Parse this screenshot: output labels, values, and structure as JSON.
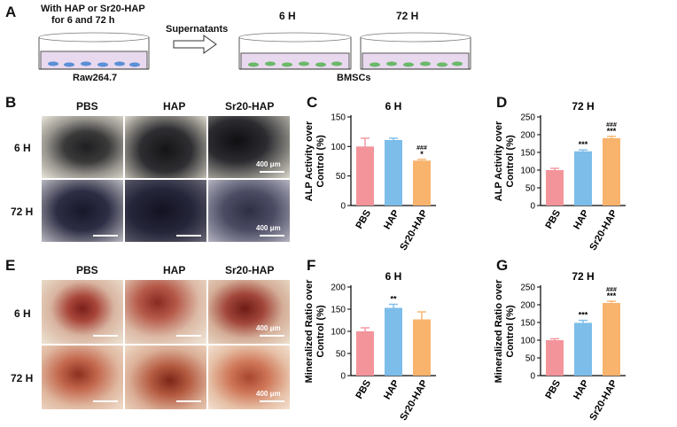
{
  "panel_letters": [
    "A",
    "B",
    "C",
    "D",
    "E",
    "F",
    "G"
  ],
  "panelA": {
    "treat_line1": "With HAP or Sr20-HAP",
    "treat_line2": "for 6 and 72 h",
    "arrow_label": "Supernatants",
    "dish_left_label": "Raw264.7",
    "time1": "6 H",
    "time2": "72 H",
    "dish_right_label": "BMSCs"
  },
  "panelB": {
    "columns": [
      "PBS",
      "HAP",
      "Sr20-HAP"
    ],
    "rows": [
      "6 H",
      "72 H"
    ],
    "scale": "400 μm"
  },
  "panelE": {
    "columns": [
      "PBS",
      "HAP",
      "Sr20-HAP"
    ],
    "rows": [
      "6 H",
      "72 H"
    ],
    "scale": "400 μm"
  },
  "colors": {
    "PBS": "#f3949b",
    "HAP": "#7cbdea",
    "Sr20-HAP": "#f8b36c"
  },
  "chart_data": [
    {
      "panel": "C",
      "type": "bar",
      "title": "6 H",
      "ylabel": "ALP Activity over Control (%)",
      "categories": [
        "PBS",
        "HAP",
        "Sr20-HAP"
      ],
      "values": [
        100,
        111,
        76
      ],
      "errors": [
        14,
        3,
        2
      ],
      "annotations": [
        "",
        "",
        "###|*"
      ],
      "ylim": [
        0,
        150
      ],
      "yticks": [
        0,
        50,
        100,
        150
      ]
    },
    {
      "panel": "D",
      "type": "bar",
      "title": "72 H",
      "ylabel": "ALP Activity over Control (%)",
      "categories": [
        "PBS",
        "HAP",
        "Sr20-HAP"
      ],
      "values": [
        100,
        153,
        190
      ],
      "errors": [
        5,
        4,
        5
      ],
      "annotations": [
        "",
        "***",
        "###|***"
      ],
      "ylim": [
        0,
        250
      ],
      "yticks": [
        0,
        50,
        100,
        150,
        200,
        250
      ]
    },
    {
      "panel": "F",
      "type": "bar",
      "title": "6 H",
      "ylabel": "Mineralized Ratio over Control (%)",
      "categories": [
        "PBS",
        "HAP",
        "Sr20-HAP"
      ],
      "values": [
        100,
        153,
        127
      ],
      "errors": [
        8,
        8,
        17
      ],
      "annotations": [
        "",
        "**",
        ""
      ],
      "ylim": [
        0,
        200
      ],
      "yticks": [
        0,
        50,
        100,
        150,
        200
      ]
    },
    {
      "panel": "G",
      "type": "bar",
      "title": "72 H",
      "ylabel": "Mineralized Ratio over Control (%)",
      "categories": [
        "PBS",
        "HAP",
        "Sr20-HAP"
      ],
      "values": [
        100,
        149,
        205
      ],
      "errors": [
        4,
        7,
        5
      ],
      "annotations": [
        "",
        "***",
        "###|***"
      ],
      "ylim": [
        0,
        250
      ],
      "yticks": [
        0,
        50,
        100,
        150,
        200,
        250
      ]
    }
  ]
}
